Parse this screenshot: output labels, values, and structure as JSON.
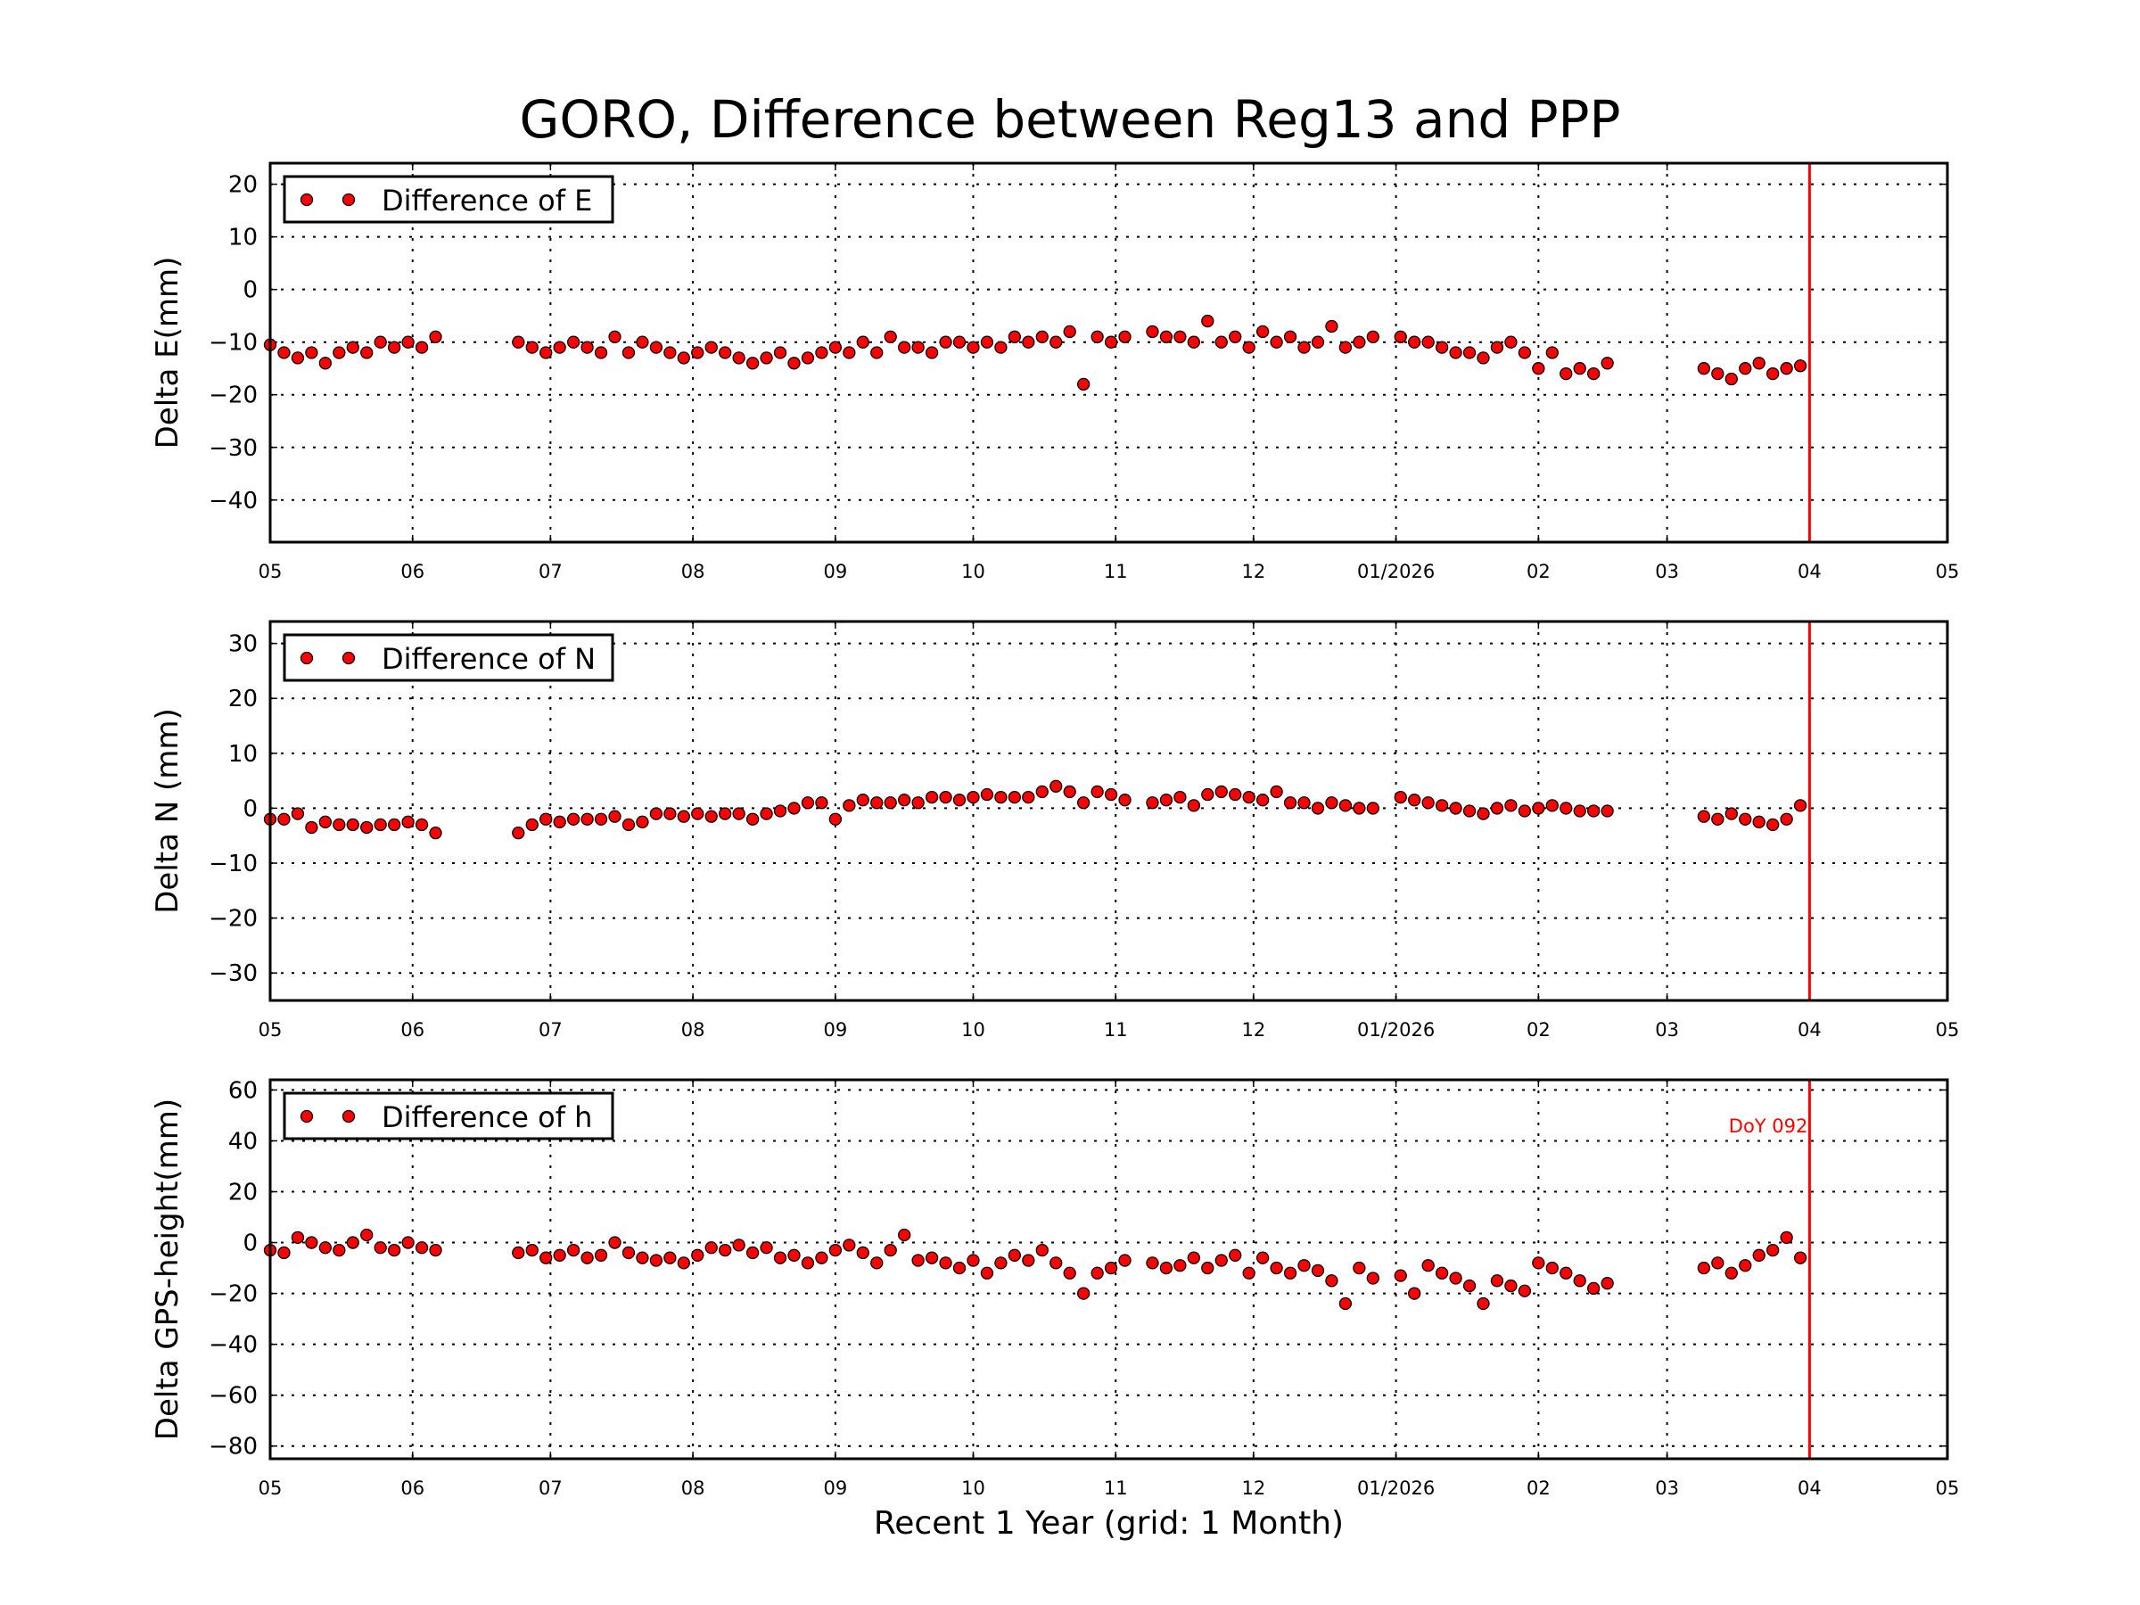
{
  "chart_data": [
    {
      "type": "scatter",
      "title": "GORO, Difference between Reg13 and PPP",
      "xlabel": "Recent 1 Year (grid: 1 Month)",
      "ylabel": "Delta E(mm)",
      "legend": {
        "placement": "top-left",
        "entries": [
          "Difference of E"
        ]
      },
      "ylim": [
        -48,
        24
      ],
      "yticks": [
        20,
        10,
        0,
        -10,
        -20,
        -30,
        -40
      ],
      "grid": true,
      "series_key": "E"
    },
    {
      "type": "scatter",
      "ylabel": "Delta N (mm)",
      "legend": {
        "placement": "top-left",
        "entries": [
          "Difference of N"
        ]
      },
      "ylim": [
        -35,
        34
      ],
      "yticks": [
        30,
        20,
        10,
        0,
        -10,
        -20,
        -30
      ],
      "grid": true,
      "series_key": "N"
    },
    {
      "type": "scatter",
      "ylabel": "Delta GPS-height(mm)",
      "legend": {
        "placement": "top-left",
        "entries": [
          "Difference of h"
        ]
      },
      "ylim": [
        -85,
        64
      ],
      "yticks": [
        60,
        40,
        20,
        0,
        -20,
        -40,
        -60,
        -80
      ],
      "grid": true,
      "annotation": "DoY 092",
      "series_key": "h"
    }
  ],
  "shared": {
    "xlim": [
      "2025-05-01",
      "2026-05-01"
    ],
    "xticks": [
      {
        "date": "2025-05-01",
        "label": "05"
      },
      {
        "date": "2025-06-01",
        "label": "06"
      },
      {
        "date": "2025-07-01",
        "label": "07"
      },
      {
        "date": "2025-08-01",
        "label": "08"
      },
      {
        "date": "2025-09-01",
        "label": "09"
      },
      {
        "date": "2025-10-01",
        "label": "10"
      },
      {
        "date": "2025-11-01",
        "label": "11"
      },
      {
        "date": "2025-12-01",
        "label": "12"
      },
      {
        "date": "2026-01-01",
        "label": "01/2026"
      },
      {
        "date": "2026-02-01",
        "label": "02"
      },
      {
        "date": "2026-03-01",
        "label": "03"
      },
      {
        "date": "2026-04-01",
        "label": "04"
      },
      {
        "date": "2026-05-01",
        "label": "05"
      }
    ],
    "marker_line": {
      "date": "2026-04-01",
      "color": "#ff0000"
    },
    "point_color": "#ff0000",
    "x": [
      "2025-05-01",
      "2025-05-04",
      "2025-05-07",
      "2025-05-10",
      "2025-05-13",
      "2025-05-16",
      "2025-05-19",
      "2025-05-22",
      "2025-05-25",
      "2025-05-28",
      "2025-05-31",
      "2025-06-03",
      "2025-06-06",
      "2025-06-09",
      "2025-06-12",
      "2025-06-15",
      "2025-06-18",
      "2025-06-21",
      "2025-06-24",
      "2025-06-27",
      "2025-06-30",
      "2025-07-03",
      "2025-07-06",
      "2025-07-09",
      "2025-07-12",
      "2025-07-15",
      "2025-07-18",
      "2025-07-21",
      "2025-07-24",
      "2025-07-27",
      "2025-07-30",
      "2025-08-02",
      "2025-08-05",
      "2025-08-08",
      "2025-08-11",
      "2025-08-14",
      "2025-08-17",
      "2025-08-20",
      "2025-08-23",
      "2025-08-26",
      "2025-08-29",
      "2025-09-01",
      "2025-09-04",
      "2025-09-07",
      "2025-09-10",
      "2025-09-13",
      "2025-09-16",
      "2025-09-19",
      "2025-09-22",
      "2025-09-25",
      "2025-09-28",
      "2025-10-01",
      "2025-10-04",
      "2025-10-07",
      "2025-10-10",
      "2025-10-13",
      "2025-10-16",
      "2025-10-19",
      "2025-10-22",
      "2025-10-25",
      "2025-10-28",
      "2025-10-31",
      "2025-11-03",
      "2025-11-06",
      "2025-11-09",
      "2025-11-12",
      "2025-11-15",
      "2025-11-18",
      "2025-11-21",
      "2025-11-24",
      "2025-11-27",
      "2025-11-30",
      "2025-12-03",
      "2025-12-06",
      "2025-12-09",
      "2025-12-12",
      "2025-12-15",
      "2025-12-18",
      "2025-12-21",
      "2025-12-24",
      "2025-12-27",
      "2025-12-30",
      "2026-01-02",
      "2026-01-05",
      "2026-01-08",
      "2026-01-11",
      "2026-01-14",
      "2026-01-17",
      "2026-01-20",
      "2026-01-23",
      "2026-01-26",
      "2026-01-29",
      "2026-02-01",
      "2026-02-04",
      "2026-02-07",
      "2026-02-10",
      "2026-02-13",
      "2026-02-16",
      "2026-02-19",
      "2026-02-22",
      "2026-02-25",
      "2026-02-28",
      "2026-03-03",
      "2026-03-06",
      "2026-03-09",
      "2026-03-12",
      "2026-03-15",
      "2026-03-18",
      "2026-03-21",
      "2026-03-24",
      "2026-03-27",
      "2026-03-30"
    ],
    "series": {
      "E": [
        -10.5,
        -12,
        -13,
        -12,
        -14,
        -12,
        -11,
        -12,
        -10,
        -11,
        -10,
        -11,
        -9,
        null,
        null,
        null,
        null,
        null,
        -10,
        -11,
        -12,
        -11,
        -10,
        -11,
        -12,
        -9,
        -12,
        -10,
        -11,
        -12,
        -13,
        -12,
        -11,
        -12,
        -13,
        -14,
        -13,
        -12,
        -14,
        -13,
        -12,
        -11,
        -12,
        -10,
        -12,
        -9,
        -11,
        -11,
        -12,
        -10,
        -10,
        -11,
        -10,
        -11,
        -9,
        -10,
        -9,
        -10,
        -8,
        -18,
        -9,
        -10,
        -9,
        null,
        -8,
        -9,
        -9,
        -10,
        -6,
        -10,
        -9,
        -11,
        -8,
        -10,
        -9,
        -11,
        -10,
        -7,
        -11,
        -10,
        -9,
        null,
        -9,
        -10,
        -10,
        -11,
        -12,
        -12,
        -13,
        -11,
        -10,
        -12,
        -15,
        -12,
        -16,
        -15,
        -16,
        -14,
        null,
        null,
        null,
        null,
        null,
        null,
        -15,
        -16,
        -17,
        -15,
        -14,
        -16,
        -15,
        -14.5
      ],
      "N": [
        -2,
        -2,
        -1,
        -3.5,
        -2.5,
        -3,
        -3,
        -3.5,
        -3,
        -3,
        -2.5,
        -3,
        -4.5,
        null,
        null,
        null,
        null,
        null,
        -4.5,
        -3,
        -2,
        -2.5,
        -2,
        -2,
        -2,
        -1.5,
        -3,
        -2.5,
        -1,
        -1,
        -1.5,
        -1,
        -1.5,
        -1,
        -1,
        -2,
        -1,
        -0.5,
        0,
        1,
        1,
        -2,
        0.5,
        1.5,
        1,
        1,
        1.5,
        1,
        2,
        2,
        1.5,
        2,
        2.5,
        2,
        2,
        2,
        3,
        4,
        3,
        1,
        3,
        2.5,
        1.5,
        null,
        1,
        1.5,
        2,
        0.5,
        2.5,
        3,
        2.5,
        2,
        1.5,
        3,
        1,
        1,
        0,
        1,
        0.5,
        0,
        0,
        null,
        2,
        1.5,
        1,
        0.5,
        0,
        -0.5,
        -1,
        0,
        0.5,
        -0.5,
        0,
        0.5,
        0,
        -0.5,
        -0.5,
        -0.5,
        null,
        null,
        null,
        null,
        null,
        null,
        -1.5,
        -2,
        -1,
        -2,
        -2.5,
        -3,
        -2,
        0.5
      ],
      "h": [
        -3,
        -4,
        2,
        0,
        -2,
        -3,
        0,
        3,
        -2,
        -3,
        0,
        -2,
        -3,
        null,
        null,
        null,
        null,
        null,
        -4,
        -3,
        -6,
        -5,
        -3,
        -6,
        -5,
        0,
        -4,
        -6,
        -7,
        -6,
        -8,
        -5,
        -2,
        -3,
        -1,
        -4,
        -2,
        -6,
        -5,
        -8,
        -6,
        -3,
        -1,
        -4,
        -8,
        -3,
        3,
        -7,
        -6,
        -8,
        -10,
        -7,
        -12,
        -8,
        -5,
        -7,
        -3,
        -8,
        -12,
        -20,
        -12,
        -10,
        -7,
        null,
        -8,
        -10,
        -9,
        -6,
        -10,
        -7,
        -5,
        -12,
        -6,
        -10,
        -12,
        -9,
        -11,
        -15,
        -24,
        -10,
        -14,
        null,
        -13,
        -20,
        -9,
        -12,
        -14,
        -17,
        -24,
        -15,
        -17,
        -19,
        -8,
        -10,
        -12,
        -15,
        -18,
        -16,
        null,
        null,
        null,
        null,
        null,
        null,
        -10,
        -8,
        -12,
        -9,
        -5,
        -3,
        2,
        -6
      ]
    }
  }
}
